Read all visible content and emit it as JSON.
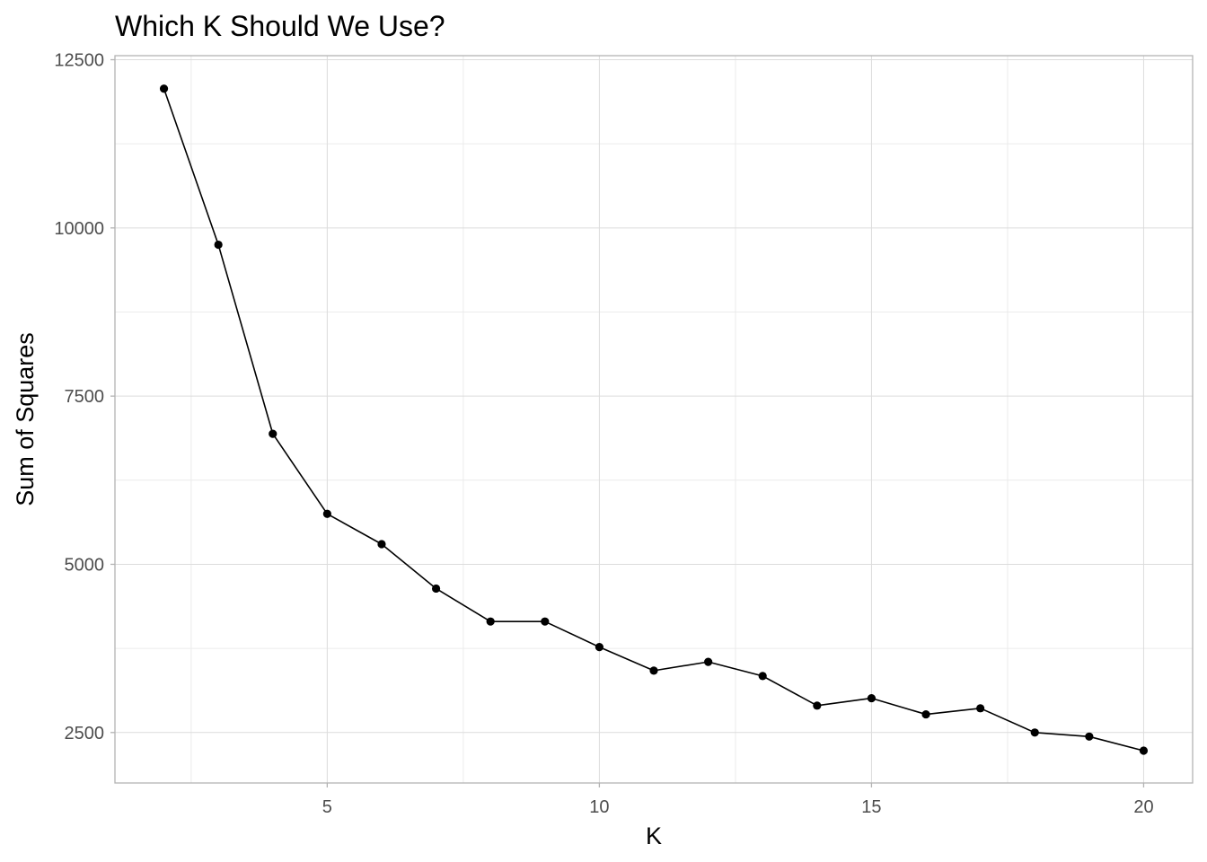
{
  "chart_data": {
    "type": "line",
    "title": "Which K Should We Use?",
    "xlabel": "K",
    "ylabel": "Sum of Squares",
    "x": [
      2,
      3,
      4,
      5,
      6,
      7,
      8,
      9,
      10,
      11,
      12,
      13,
      14,
      15,
      16,
      17,
      18,
      19,
      20
    ],
    "series": [
      {
        "values": [
          12070,
          9750,
          6940,
          5750,
          5300,
          4640,
          4150,
          4150,
          3770,
          3420,
          3550,
          3340,
          2900,
          3010,
          2770,
          2860,
          2500,
          2440,
          2230
        ]
      }
    ],
    "xlim": [
      1.1,
      20.9
    ],
    "ylim": [
      1750,
      12560
    ],
    "x_ticks": [
      5,
      10,
      15,
      20
    ],
    "x_tick_labels": [
      "5",
      "10",
      "15",
      "20"
    ],
    "x_minor_ticks": [
      2.5,
      7.5,
      12.5,
      17.5
    ],
    "y_ticks": [
      2500,
      5000,
      7500,
      10000,
      12500
    ],
    "y_tick_labels": [
      "2500",
      "5000",
      "7500",
      "10000",
      "12500"
    ],
    "y_minor_ticks": [
      3750,
      6250,
      8750,
      11250
    ],
    "grid": true,
    "legend": "none",
    "colors": {
      "line": "#000000",
      "point": "#000000",
      "grid_major": "#dcdcdc",
      "grid_minor": "#ebebeb",
      "panel_border": "#b3b3b3",
      "tick_label": "#4d4d4d",
      "text": "#000000"
    }
  }
}
